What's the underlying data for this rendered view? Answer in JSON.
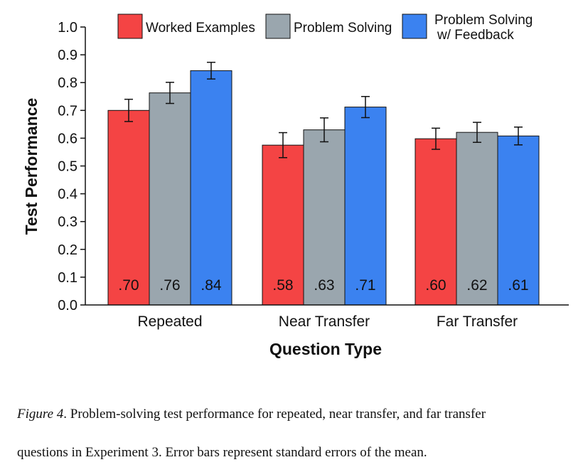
{
  "chart_data": {
    "type": "bar",
    "xlabel": "Question Type",
    "ylabel": "Test Performance",
    "ylim": [
      0,
      1.0
    ],
    "yticks": [
      "0.0",
      "0.1",
      "0.2",
      "0.3",
      "0.4",
      "0.5",
      "0.6",
      "0.7",
      "0.8",
      "0.9",
      "1.0"
    ],
    "categories": [
      "Repeated",
      "Near Transfer",
      "Far Transfer"
    ],
    "series": [
      {
        "name": "Worked Examples",
        "color": "#f44444",
        "values": [
          0.7,
          0.575,
          0.598
        ],
        "errors": [
          0.04,
          0.045,
          0.038
        ],
        "labels": [
          ".70",
          ".58",
          ".60"
        ]
      },
      {
        "name": "Problem Solving",
        "color": "#9aa6ae",
        "values": [
          0.763,
          0.63,
          0.621
        ],
        "errors": [
          0.038,
          0.043,
          0.036
        ],
        "labels": [
          ".76",
          ".63",
          ".62"
        ]
      },
      {
        "name": "Problem Solving w/ Feedback",
        "color": "#3b82f0",
        "values": [
          0.843,
          0.712,
          0.608
        ],
        "errors": [
          0.03,
          0.038,
          0.032
        ],
        "labels": [
          ".84",
          ".71",
          ".61"
        ]
      }
    ],
    "legend": {
      "position": "top",
      "labels": [
        "Worked Examples",
        "Problem Solving",
        "Problem Solving",
        "w/ Feedback"
      ]
    },
    "grid": false
  },
  "caption": {
    "figure_label": "Figure 4",
    "text_line1": ". Problem-solving test performance for repeated, near transfer, and far transfer",
    "text_line2": "questions in Experiment 3. Error bars represent standard errors of the mean."
  }
}
